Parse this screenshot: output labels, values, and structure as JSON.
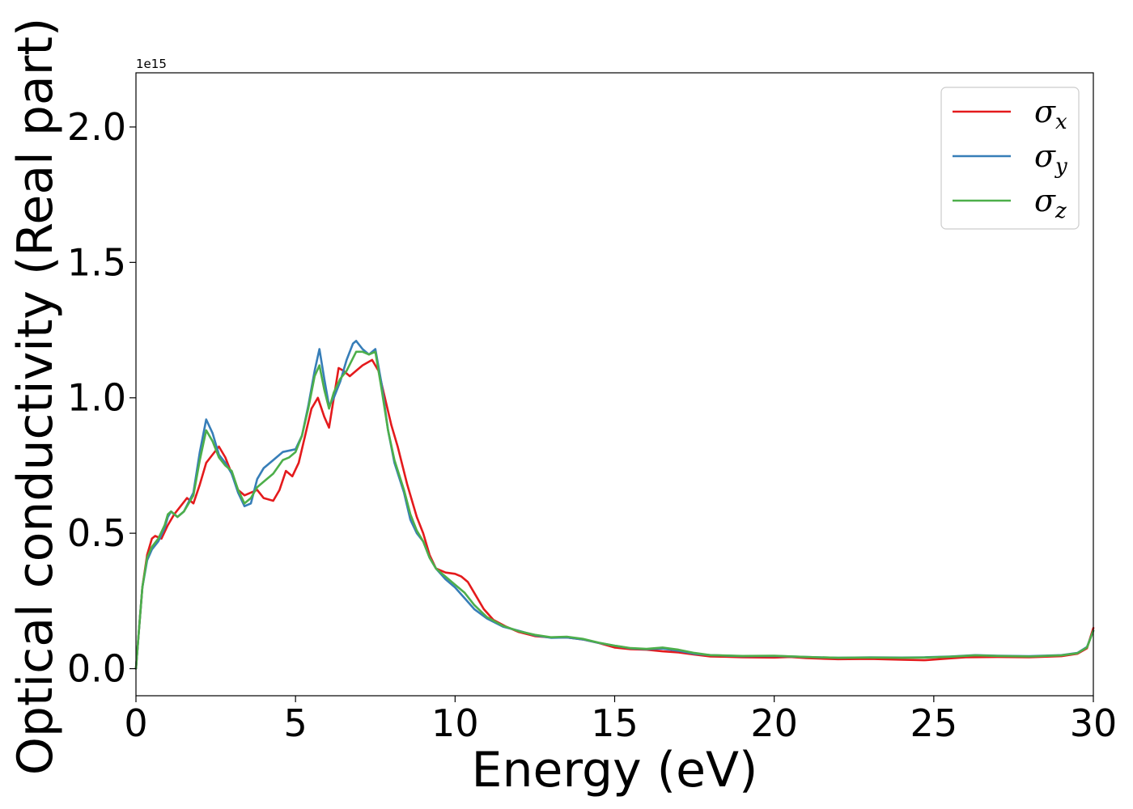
{
  "chart_data": {
    "type": "line",
    "title": "",
    "xlabel": "Energy (eV)",
    "ylabel": "Optical conductivity (Real part)",
    "y_offset_text": "1e15",
    "xlim": [
      0,
      30
    ],
    "ylim": [
      -0.1,
      2.2
    ],
    "x_ticks": [
      0,
      5,
      10,
      15,
      20,
      25,
      30
    ],
    "x_tick_labels": [
      "0",
      "5",
      "10",
      "15",
      "20",
      "25",
      "30"
    ],
    "y_ticks": [
      0.0,
      0.5,
      1.0,
      1.5,
      2.0
    ],
    "y_tick_labels": [
      "0.0",
      "0.5",
      "1.0",
      "1.5",
      "2.0"
    ],
    "grid": false,
    "legend_position": "top-right",
    "colors": {
      "axis": "#000000",
      "legend_border": "#cccccc"
    },
    "series": [
      {
        "name": "σx",
        "legend_base": "σ",
        "legend_sub": "x",
        "color": "#e41a1c",
        "points": [
          [
            0,
            0
          ],
          [
            0.1,
            0.15
          ],
          [
            0.2,
            0.3
          ],
          [
            0.35,
            0.42
          ],
          [
            0.5,
            0.48
          ],
          [
            0.6,
            0.49
          ],
          [
            0.8,
            0.48
          ],
          [
            1.0,
            0.53
          ],
          [
            1.2,
            0.57
          ],
          [
            1.4,
            0.6
          ],
          [
            1.6,
            0.63
          ],
          [
            1.8,
            0.61
          ],
          [
            2.0,
            0.68
          ],
          [
            2.2,
            0.76
          ],
          [
            2.4,
            0.79
          ],
          [
            2.6,
            0.82
          ],
          [
            2.8,
            0.78
          ],
          [
            3.0,
            0.72
          ],
          [
            3.2,
            0.66
          ],
          [
            3.4,
            0.64
          ],
          [
            3.6,
            0.65
          ],
          [
            3.8,
            0.66
          ],
          [
            4.0,
            0.63
          ],
          [
            4.3,
            0.62
          ],
          [
            4.5,
            0.66
          ],
          [
            4.7,
            0.73
          ],
          [
            4.9,
            0.71
          ],
          [
            5.1,
            0.76
          ],
          [
            5.3,
            0.86
          ],
          [
            5.5,
            0.96
          ],
          [
            5.7,
            1.0
          ],
          [
            5.9,
            0.93
          ],
          [
            6.05,
            0.89
          ],
          [
            6.2,
            1.0
          ],
          [
            6.35,
            1.11
          ],
          [
            6.5,
            1.1
          ],
          [
            6.7,
            1.08
          ],
          [
            6.9,
            1.1
          ],
          [
            7.1,
            1.12
          ],
          [
            7.4,
            1.14
          ],
          [
            7.6,
            1.1
          ],
          [
            7.8,
            1.0
          ],
          [
            8.0,
            0.9
          ],
          [
            8.2,
            0.82
          ],
          [
            8.5,
            0.68
          ],
          [
            8.8,
            0.56
          ],
          [
            9.0,
            0.5
          ],
          [
            9.2,
            0.42
          ],
          [
            9.4,
            0.37
          ],
          [
            9.7,
            0.355
          ],
          [
            10.0,
            0.35
          ],
          [
            10.2,
            0.34
          ],
          [
            10.4,
            0.32
          ],
          [
            10.6,
            0.28
          ],
          [
            10.9,
            0.22
          ],
          [
            11.2,
            0.18
          ],
          [
            11.6,
            0.155
          ],
          [
            12.0,
            0.135
          ],
          [
            12.5,
            0.12
          ],
          [
            13.0,
            0.115
          ],
          [
            13.5,
            0.115
          ],
          [
            14.0,
            0.108
          ],
          [
            14.5,
            0.095
          ],
          [
            15.0,
            0.078
          ],
          [
            15.5,
            0.072
          ],
          [
            16.0,
            0.07
          ],
          [
            16.5,
            0.064
          ],
          [
            17.0,
            0.06
          ],
          [
            17.5,
            0.052
          ],
          [
            18.0,
            0.045
          ],
          [
            18.5,
            0.044
          ],
          [
            19.0,
            0.042
          ],
          [
            20.0,
            0.041
          ],
          [
            20.5,
            0.043
          ],
          [
            21.0,
            0.039
          ],
          [
            22.0,
            0.035
          ],
          [
            23.0,
            0.036
          ],
          [
            24.0,
            0.033
          ],
          [
            24.7,
            0.031
          ],
          [
            25.5,
            0.038
          ],
          [
            26.0,
            0.042
          ],
          [
            27.0,
            0.043
          ],
          [
            28.0,
            0.042
          ],
          [
            29.0,
            0.046
          ],
          [
            29.5,
            0.055
          ],
          [
            29.8,
            0.075
          ],
          [
            30.0,
            0.15
          ]
        ]
      },
      {
        "name": "σy",
        "legend_base": "σ",
        "legend_sub": "y",
        "color": "#377eb8",
        "points": [
          [
            0,
            0
          ],
          [
            0.1,
            0.15
          ],
          [
            0.2,
            0.3
          ],
          [
            0.35,
            0.4
          ],
          [
            0.5,
            0.44
          ],
          [
            0.7,
            0.47
          ],
          [
            0.9,
            0.52
          ],
          [
            1.0,
            0.56
          ],
          [
            1.1,
            0.58
          ],
          [
            1.3,
            0.56
          ],
          [
            1.5,
            0.58
          ],
          [
            1.8,
            0.65
          ],
          [
            2.0,
            0.8
          ],
          [
            2.2,
            0.92
          ],
          [
            2.4,
            0.87
          ],
          [
            2.6,
            0.79
          ],
          [
            2.8,
            0.76
          ],
          [
            3.0,
            0.72
          ],
          [
            3.2,
            0.65
          ],
          [
            3.4,
            0.6
          ],
          [
            3.6,
            0.61
          ],
          [
            3.8,
            0.7
          ],
          [
            4.0,
            0.74
          ],
          [
            4.3,
            0.77
          ],
          [
            4.6,
            0.8
          ],
          [
            5.0,
            0.81
          ],
          [
            5.2,
            0.86
          ],
          [
            5.4,
            0.97
          ],
          [
            5.6,
            1.1
          ],
          [
            5.75,
            1.18
          ],
          [
            5.9,
            1.07
          ],
          [
            6.05,
            0.97
          ],
          [
            6.2,
            1.0
          ],
          [
            6.4,
            1.06
          ],
          [
            6.6,
            1.14
          ],
          [
            6.8,
            1.2
          ],
          [
            6.9,
            1.21
          ],
          [
            7.1,
            1.18
          ],
          [
            7.3,
            1.16
          ],
          [
            7.5,
            1.18
          ],
          [
            7.7,
            1.05
          ],
          [
            7.9,
            0.88
          ],
          [
            8.1,
            0.76
          ],
          [
            8.4,
            0.65
          ],
          [
            8.6,
            0.55
          ],
          [
            8.8,
            0.5
          ],
          [
            9.0,
            0.47
          ],
          [
            9.2,
            0.41
          ],
          [
            9.4,
            0.37
          ],
          [
            9.7,
            0.33
          ],
          [
            10.0,
            0.3
          ],
          [
            10.3,
            0.26
          ],
          [
            10.6,
            0.22
          ],
          [
            11.0,
            0.185
          ],
          [
            11.5,
            0.155
          ],
          [
            12.0,
            0.14
          ],
          [
            12.5,
            0.123
          ],
          [
            13.0,
            0.114
          ],
          [
            13.5,
            0.115
          ],
          [
            14.0,
            0.108
          ],
          [
            14.5,
            0.095
          ],
          [
            15.0,
            0.085
          ],
          [
            15.5,
            0.075
          ],
          [
            16.0,
            0.072
          ],
          [
            16.5,
            0.074
          ],
          [
            17.0,
            0.066
          ],
          [
            17.5,
            0.055
          ],
          [
            18.0,
            0.05
          ],
          [
            19.0,
            0.046
          ],
          [
            20.0,
            0.047
          ],
          [
            21.0,
            0.043
          ],
          [
            22.0,
            0.04
          ],
          [
            23.0,
            0.042
          ],
          [
            24.0,
            0.041
          ],
          [
            24.7,
            0.042
          ],
          [
            25.5,
            0.045
          ],
          [
            26.3,
            0.05
          ],
          [
            27.0,
            0.048
          ],
          [
            28.0,
            0.046
          ],
          [
            29.0,
            0.05
          ],
          [
            29.5,
            0.058
          ],
          [
            29.8,
            0.08
          ],
          [
            30.0,
            0.14
          ]
        ]
      },
      {
        "name": "σz",
        "legend_base": "σ",
        "legend_sub": "z",
        "color": "#4daf4a",
        "points": [
          [
            0,
            0
          ],
          [
            0.1,
            0.15
          ],
          [
            0.2,
            0.3
          ],
          [
            0.35,
            0.41
          ],
          [
            0.5,
            0.45
          ],
          [
            0.7,
            0.48
          ],
          [
            0.9,
            0.53
          ],
          [
            1.0,
            0.57
          ],
          [
            1.1,
            0.58
          ],
          [
            1.3,
            0.56
          ],
          [
            1.5,
            0.58
          ],
          [
            1.8,
            0.64
          ],
          [
            2.0,
            0.77
          ],
          [
            2.2,
            0.88
          ],
          [
            2.4,
            0.84
          ],
          [
            2.6,
            0.78
          ],
          [
            2.8,
            0.75
          ],
          [
            3.0,
            0.73
          ],
          [
            3.2,
            0.66
          ],
          [
            3.4,
            0.61
          ],
          [
            3.6,
            0.63
          ],
          [
            3.8,
            0.67
          ],
          [
            4.0,
            0.69
          ],
          [
            4.3,
            0.72
          ],
          [
            4.6,
            0.77
          ],
          [
            4.8,
            0.78
          ],
          [
            5.0,
            0.8
          ],
          [
            5.2,
            0.86
          ],
          [
            5.4,
            0.96
          ],
          [
            5.6,
            1.08
          ],
          [
            5.75,
            1.12
          ],
          [
            5.9,
            1.03
          ],
          [
            6.05,
            0.96
          ],
          [
            6.2,
            1.02
          ],
          [
            6.4,
            1.07
          ],
          [
            6.6,
            1.1
          ],
          [
            6.9,
            1.17
          ],
          [
            7.1,
            1.17
          ],
          [
            7.3,
            1.16
          ],
          [
            7.5,
            1.17
          ],
          [
            7.7,
            1.03
          ],
          [
            7.9,
            0.88
          ],
          [
            8.1,
            0.77
          ],
          [
            8.4,
            0.66
          ],
          [
            8.6,
            0.57
          ],
          [
            8.8,
            0.51
          ],
          [
            9.0,
            0.47
          ],
          [
            9.2,
            0.41
          ],
          [
            9.4,
            0.37
          ],
          [
            9.7,
            0.34
          ],
          [
            10.0,
            0.31
          ],
          [
            10.3,
            0.28
          ],
          [
            10.6,
            0.235
          ],
          [
            11.0,
            0.19
          ],
          [
            11.5,
            0.158
          ],
          [
            12.0,
            0.138
          ],
          [
            12.5,
            0.125
          ],
          [
            13.0,
            0.116
          ],
          [
            13.5,
            0.118
          ],
          [
            14.0,
            0.11
          ],
          [
            14.5,
            0.096
          ],
          [
            15.0,
            0.085
          ],
          [
            15.5,
            0.076
          ],
          [
            16.0,
            0.073
          ],
          [
            16.5,
            0.078
          ],
          [
            17.0,
            0.07
          ],
          [
            17.5,
            0.058
          ],
          [
            18.0,
            0.05
          ],
          [
            19.0,
            0.047
          ],
          [
            20.0,
            0.048
          ],
          [
            21.0,
            0.043
          ],
          [
            22.0,
            0.04
          ],
          [
            23.0,
            0.041
          ],
          [
            24.0,
            0.04
          ],
          [
            24.7,
            0.041
          ],
          [
            25.5,
            0.044
          ],
          [
            26.3,
            0.049
          ],
          [
            27.0,
            0.047
          ],
          [
            28.0,
            0.045
          ],
          [
            29.0,
            0.049
          ],
          [
            29.5,
            0.057
          ],
          [
            29.8,
            0.078
          ],
          [
            30.0,
            0.14
          ]
        ]
      }
    ]
  }
}
